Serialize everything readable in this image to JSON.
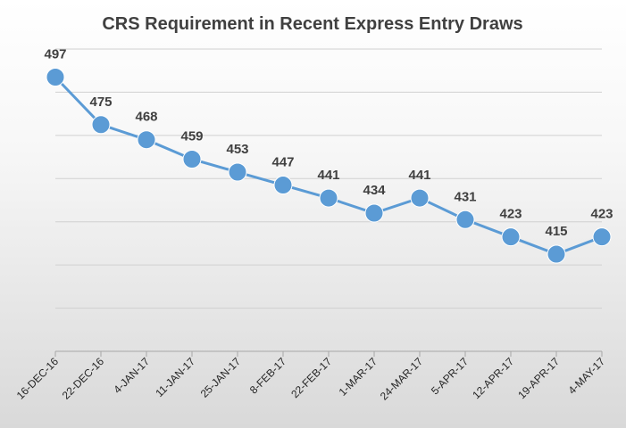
{
  "chart_data": {
    "type": "line",
    "title": "CRS Requirement in Recent Express Entry Draws",
    "xlabel": "",
    "ylabel": "",
    "categories": [
      "16-DEC-16",
      "22-DEC-16",
      "4-JAN-17",
      "11-JAN-17",
      "25-JAN-17",
      "8-FEB-17",
      "22-FEB-17",
      "1-MAR-17",
      "24-MAR-17",
      "5-APR-17",
      "12-APR-17",
      "19-APR-17",
      "4-MAY-17"
    ],
    "series": [
      {
        "values": [
          497,
          475,
          468,
          459,
          453,
          447,
          441,
          434,
          441,
          431,
          423,
          415,
          423
        ],
        "color": "#5b9bd5"
      }
    ],
    "ylim": [
      370,
      510
    ],
    "y_grid_step": 20,
    "grid": true,
    "y_tick_labels_shown": false,
    "data_labels": true,
    "legend": "none"
  }
}
